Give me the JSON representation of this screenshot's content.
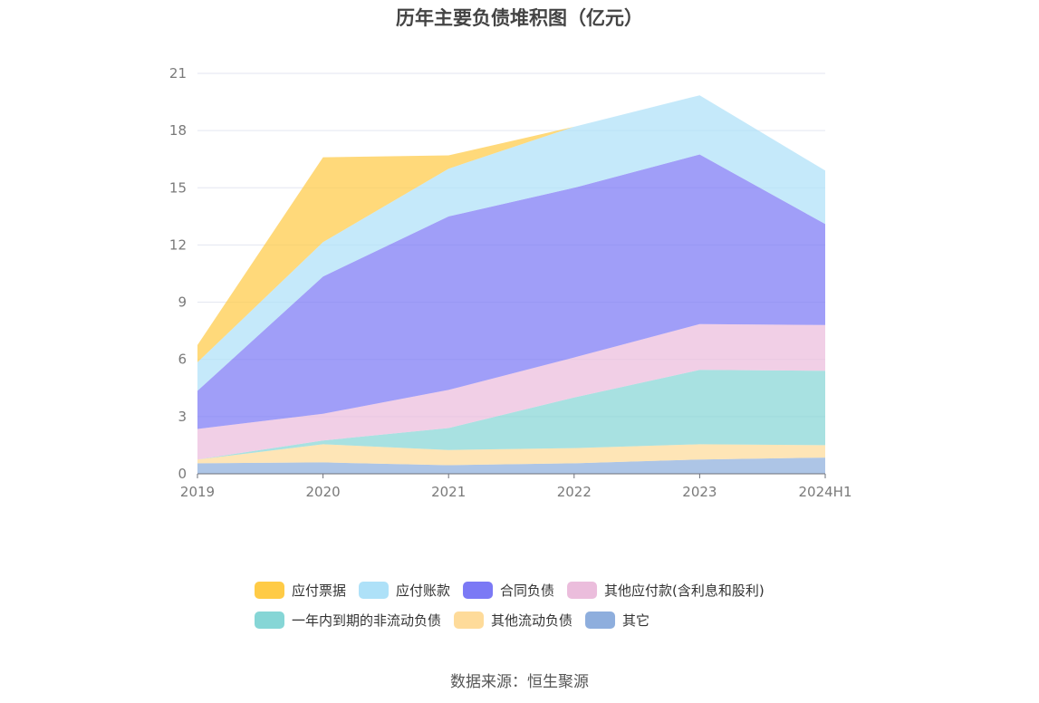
{
  "chart_data": {
    "type": "area",
    "title": "历年主要负债堆积图（亿元）",
    "categories": [
      "2019",
      "2020",
      "2021",
      "2022",
      "2023",
      "2024H1"
    ],
    "ylim": [
      0,
      21
    ],
    "yticks": [
      0,
      3,
      6,
      9,
      12,
      15,
      18,
      21
    ],
    "grid": true,
    "legend_position": "bottom",
    "stacked": true,
    "series": [
      {
        "name": "其它",
        "color": "#8eaedd",
        "values": [
          0.55,
          0.6,
          0.45,
          0.55,
          0.75,
          0.85
        ]
      },
      {
        "name": "其他流动负债",
        "color": "#fedb9a",
        "values": [
          0.2,
          0.95,
          0.8,
          0.8,
          0.8,
          0.65
        ]
      },
      {
        "name": "一年内到期的非流动负债",
        "color": "#86d6d6",
        "values": [
          0.0,
          0.2,
          1.15,
          2.65,
          3.9,
          3.9
        ]
      },
      {
        "name": "其他应付款(含利息和股利)",
        "color": "#ebbddc",
        "values": [
          1.6,
          1.4,
          2.0,
          2.1,
          2.4,
          2.4
        ]
      },
      {
        "name": "合同负债",
        "color": "#7b79f5",
        "values": [
          2.0,
          7.2,
          9.1,
          8.9,
          8.9,
          5.3
        ]
      },
      {
        "name": "应付账款",
        "color": "#aee1f8",
        "values": [
          1.5,
          1.8,
          2.5,
          3.2,
          3.1,
          2.8
        ]
      },
      {
        "name": "应付票据",
        "color": "#ffcb46",
        "values": [
          0.9,
          4.45,
          0.7,
          0.0,
          0.0,
          0.0
        ]
      }
    ],
    "legend_order": [
      "应付票据",
      "应付账款",
      "合同负债",
      "其他应付款(含利息和股利)",
      "一年内到期的非流动负债",
      "其他流动负债",
      "其它"
    ]
  },
  "source_text": "数据来源：恒生聚源"
}
